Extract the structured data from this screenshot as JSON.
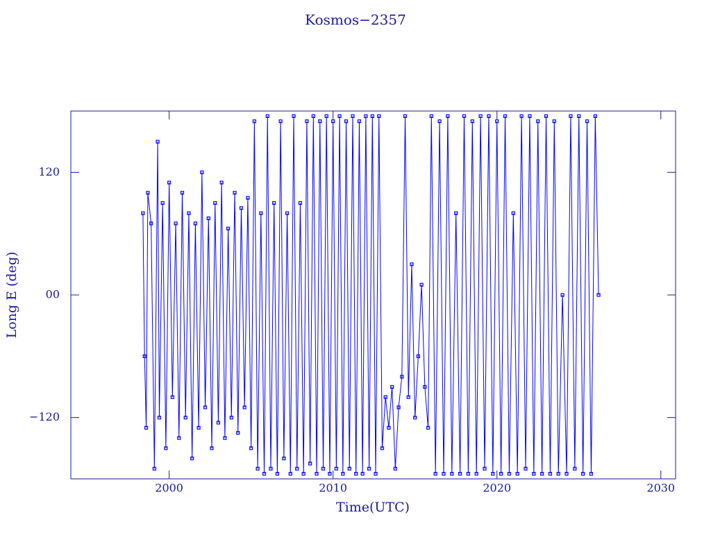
{
  "chart_data": {
    "type": "line",
    "title": "Kosmos−2357",
    "xlabel": "Time(UTC)",
    "ylabel": "Long E (deg)",
    "xlim": [
      1994,
      2030.9
    ],
    "ylim": [
      -180,
      180
    ],
    "xticks": [
      2000,
      2010,
      2020,
      2030
    ],
    "yticks": [
      {
        "value": -120,
        "label": "−120"
      },
      {
        "value": 0,
        "label": "00"
      },
      {
        "value": 120,
        "label": "120"
      }
    ],
    "series": [
      {
        "color": "#0000ff",
        "x": [
          1998.4,
          1998.5,
          1998.6,
          1998.7,
          1998.9,
          1999.1,
          1999.3,
          1999.4,
          1999.6,
          1999.8,
          2000.0,
          2000.2,
          2000.4,
          2000.6,
          2000.8,
          2001.0,
          2001.2,
          2001.4,
          2001.6,
          2001.8,
          2002.0,
          2002.2,
          2002.4,
          2002.6,
          2002.8,
          2003.0,
          2003.2,
          2003.4,
          2003.6,
          2003.8,
          2004.0,
          2004.2,
          2004.4,
          2004.6,
          2004.8,
          2005.0,
          2005.2,
          2005.4,
          2005.6,
          2005.8,
          2006.0,
          2006.2,
          2006.4,
          2006.6,
          2006.8,
          2007.0,
          2007.2,
          2007.4,
          2007.6,
          2007.8,
          2008.0,
          2008.2,
          2008.4,
          2008.6,
          2008.8,
          2009.0,
          2009.2,
          2009.4,
          2009.6,
          2009.8,
          2010.0,
          2010.2,
          2010.4,
          2010.6,
          2010.8,
          2011.0,
          2011.2,
          2011.4,
          2011.6,
          2011.8,
          2012.0,
          2012.2,
          2012.4,
          2012.6,
          2012.8,
          2013.0,
          2013.2,
          2013.4,
          2013.6,
          2013.8,
          2014.0,
          2014.2,
          2014.4,
          2014.6,
          2014.8,
          2015.0,
          2015.2,
          2015.4,
          2015.6,
          2015.8,
          2016.0,
          2016.25,
          2016.5,
          2016.75,
          2017.0,
          2017.25,
          2017.5,
          2017.75,
          2018.0,
          2018.25,
          2018.5,
          2018.75,
          2019.0,
          2019.25,
          2019.5,
          2019.75,
          2020.0,
          2020.25,
          2020.5,
          2020.75,
          2021.0,
          2021.25,
          2021.5,
          2021.75,
          2022.0,
          2022.25,
          2022.5,
          2022.75,
          2023.0,
          2023.25,
          2023.5,
          2023.75,
          2024.0,
          2024.25,
          2024.5,
          2024.75,
          2025.0,
          2025.25,
          2025.5,
          2025.75,
          2026.0,
          2026.2
        ],
        "values": [
          80,
          -60,
          -130,
          100,
          70,
          -170,
          150,
          -120,
          90,
          -150,
          110,
          -100,
          70,
          -140,
          100,
          -120,
          80,
          -160,
          70,
          -130,
          120,
          -110,
          75,
          -150,
          90,
          -125,
          110,
          -140,
          65,
          -120,
          100,
          -135,
          85,
          -110,
          95,
          -150,
          170,
          -170,
          80,
          -175,
          175,
          -170,
          90,
          -175,
          170,
          -160,
          80,
          -175,
          175,
          -170,
          90,
          -175,
          170,
          -165,
          175,
          -175,
          170,
          -170,
          175,
          -175,
          170,
          -170,
          175,
          -175,
          170,
          -170,
          175,
          -175,
          170,
          -175,
          175,
          -170,
          175,
          -175,
          175,
          -150,
          -100,
          -130,
          -90,
          -170,
          -110,
          -80,
          175,
          -100,
          30,
          -120,
          -60,
          10,
          -90,
          -130,
          175,
          -175,
          170,
          -175,
          175,
          -175,
          80,
          -175,
          175,
          -175,
          170,
          -175,
          175,
          -170,
          175,
          -175,
          170,
          -175,
          175,
          -175,
          80,
          -175,
          175,
          -170,
          175,
          -175,
          170,
          -175,
          175,
          -175,
          170,
          -175,
          0,
          -175,
          175,
          -170,
          175,
          -175,
          170,
          -175,
          175,
          0
        ]
      }
    ]
  }
}
